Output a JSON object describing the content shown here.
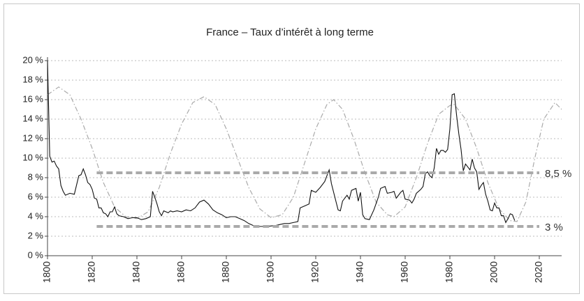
{
  "chart_data": {
    "type": "line",
    "title": "France – Taux d’intérêt à long terme",
    "xlim": [
      1800,
      2030
    ],
    "xticks": [
      1800,
      1820,
      1840,
      1860,
      1880,
      1900,
      1920,
      1940,
      1960,
      1980,
      2000,
      2020
    ],
    "ylim": [
      0,
      20
    ],
    "yticks": [
      {
        "value": 0,
        "label": "0 %"
      },
      {
        "value": 2,
        "label": "2 %"
      },
      {
        "value": 4,
        "label": "4 %"
      },
      {
        "value": 6,
        "label": "6 %"
      },
      {
        "value": 8,
        "label": "8 %"
      },
      {
        "value": 10,
        "label": "10 %"
      },
      {
        "value": 12,
        "label": "12 %"
      },
      {
        "value": 14,
        "label": "14 %"
      },
      {
        "value": 16,
        "label": "16 %"
      },
      {
        "value": 18,
        "label": "18 %"
      },
      {
        "value": 20,
        "label": "20 %"
      }
    ],
    "grid": true,
    "series": [
      {
        "color": "#aaaaaa",
        "style": "dashdot",
        "x": [
          1800,
          1805,
          1810,
          1815,
          1820,
          1825,
          1830,
          1835,
          1840,
          1845,
          1850,
          1855,
          1860,
          1865,
          1870,
          1875,
          1880,
          1885,
          1890,
          1895,
          1900,
          1905,
          1910,
          1915,
          1920,
          1925,
          1928,
          1932,
          1937,
          1942,
          1947,
          1952,
          1955,
          1960,
          1965,
          1970,
          1975,
          1980,
          1982,
          1987,
          1992,
          1997,
          2002,
          2007,
          2010,
          2014,
          2018,
          2022,
          2027,
          2030
        ],
        "values": [
          16.5,
          17.3,
          16.5,
          14,
          11,
          7.5,
          5,
          4,
          3.8,
          4.5,
          7,
          10.5,
          13.5,
          15.7,
          16.3,
          15.5,
          13,
          10,
          7,
          4.8,
          3.9,
          4.2,
          6,
          9.5,
          13,
          15.5,
          16,
          15,
          12,
          8.5,
          5.5,
          4.2,
          4,
          5,
          8,
          11.5,
          14.5,
          15.4,
          15.5,
          14,
          11,
          7.5,
          4.8,
          3.6,
          3.5,
          5.5,
          10,
          14,
          15.7,
          15
        ]
      },
      {
        "color": "#111111",
        "style": "solid",
        "x": [
          1800,
          1801,
          1802,
          1803,
          1804,
          1805,
          1806,
          1807,
          1808,
          1810,
          1812,
          1814,
          1815,
          1816,
          1817,
          1818,
          1819,
          1820,
          1821,
          1822,
          1823,
          1824,
          1825,
          1826,
          1827,
          1828,
          1829,
          1830,
          1831,
          1832,
          1834,
          1836,
          1838,
          1840,
          1842,
          1844,
          1846,
          1847,
          1848,
          1849,
          1850,
          1851,
          1852,
          1853,
          1854,
          1855,
          1856,
          1858,
          1860,
          1862,
          1864,
          1866,
          1868,
          1870,
          1872,
          1874,
          1876,
          1878,
          1880,
          1882,
          1884,
          1886,
          1888,
          1890,
          1892,
          1894,
          1896,
          1898,
          1900,
          1902,
          1904,
          1906,
          1908,
          1910,
          1912,
          1913,
          1915,
          1917,
          1918,
          1920,
          1922,
          1924,
          1926,
          1927,
          1928,
          1930,
          1931,
          1932,
          1934,
          1935,
          1936,
          1938,
          1939,
          1940,
          1941,
          1942,
          1944,
          1946,
          1948,
          1949,
          1951,
          1952,
          1954,
          1955,
          1956,
          1958,
          1959,
          1960,
          1962,
          1963,
          1964,
          1965,
          1967,
          1968,
          1969,
          1970,
          1971,
          1972,
          1973,
          1974,
          1975,
          1976,
          1977,
          1978,
          1979,
          1980,
          1981,
          1982,
          1983,
          1984,
          1985,
          1986,
          1987,
          1988,
          1989,
          1990,
          1991,
          1992,
          1993,
          1994,
          1995,
          1996,
          1997,
          1998,
          1999,
          2000,
          2001,
          2002,
          2003,
          2004,
          2005,
          2006,
          2007,
          2008,
          2009
        ],
        "values": [
          20,
          10.2,
          9.6,
          9.7,
          9.2,
          8.9,
          7.2,
          6.6,
          6.2,
          6.4,
          6.3,
          8.2,
          8.3,
          8.9,
          8.3,
          7.5,
          7.3,
          6.8,
          5.9,
          5.8,
          4.9,
          4.9,
          4.4,
          4.3,
          4,
          4.5,
          4.5,
          5,
          4.3,
          4.1,
          4,
          3.8,
          3.9,
          3.9,
          3.7,
          3.8,
          4,
          6.6,
          6,
          5.3,
          4.5,
          4.1,
          4.6,
          4.5,
          4.4,
          4.6,
          4.5,
          4.6,
          4.5,
          4.7,
          4.6,
          4.9,
          5.5,
          5.7,
          5.3,
          4.7,
          4.4,
          4.2,
          3.9,
          4,
          4,
          3.8,
          3.6,
          3.3,
          3.1,
          3,
          3,
          3,
          3.05,
          3.1,
          3.2,
          3.3,
          3.3,
          3.4,
          3.5,
          4.9,
          5.1,
          5.3,
          6.7,
          6.5,
          7,
          7.6,
          8.8,
          7.4,
          6.5,
          4.7,
          4.6,
          5.6,
          6.2,
          5.8,
          6.7,
          6.9,
          5.6,
          6.5,
          4.2,
          3.8,
          3.7,
          4.7,
          6,
          6.9,
          7.1,
          6.4,
          6.5,
          6.6,
          5.9,
          6.5,
          6.7,
          5.8,
          5.7,
          5.4,
          5.8,
          6.4,
          6.8,
          7.1,
          8.4,
          8.6,
          8.2,
          8,
          9,
          11,
          10.4,
          10.8,
          10.8,
          10.6,
          10.9,
          13,
          16.5,
          16.6,
          14.4,
          12.5,
          10.9,
          8.7,
          9.4,
          9.1,
          8.8,
          9.9,
          9,
          8.6,
          6.8,
          7.2,
          7.5,
          6.3,
          5.6,
          4.7,
          4.6,
          5.4,
          4.9,
          4.9,
          4.1,
          4.1,
          3.4,
          3.8,
          4.3,
          4.2,
          3.6
        ]
      }
    ],
    "hlines": [
      {
        "value": 8.5,
        "label": "8,5 %",
        "xrange": [
          1822,
          2020
        ],
        "color": "#aaaaaa"
      },
      {
        "value": 3,
        "label": "3 %",
        "xrange": [
          1822,
          2020
        ],
        "color": "#aaaaaa"
      }
    ]
  }
}
